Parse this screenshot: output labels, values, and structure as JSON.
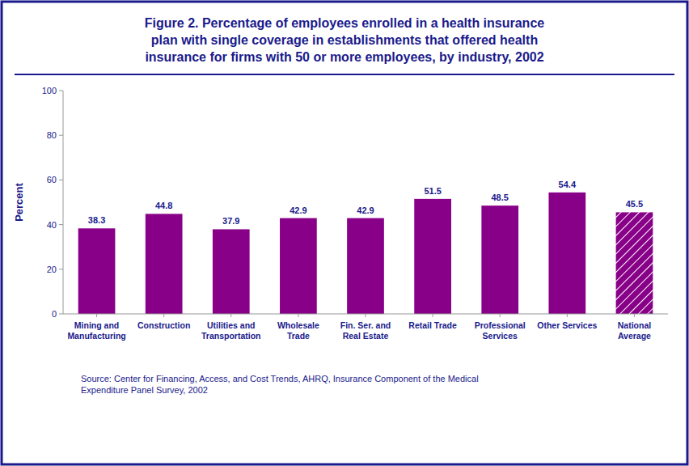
{
  "chart_data": {
    "type": "bar",
    "title": "Figure 2. Percentage of employees enrolled in a health insurance\nplan with single coverage in establishments that offered health\ninsurance for firms with 50 or more employees, by industry, 2002",
    "categories": [
      "Mining and\nManufacturing",
      "Construction",
      "Utilities and\nTransportation",
      "Wholesale\nTrade",
      "Fin. Ser. and\nReal Estate",
      "Retail Trade",
      "Professional\nServices",
      "Other Services",
      "National\nAverage"
    ],
    "values": [
      38.3,
      44.8,
      37.9,
      42.9,
      42.9,
      51.5,
      48.5,
      54.4,
      45.5
    ],
    "color": "#880088",
    "ylabel": "Percent",
    "ylim": [
      0,
      100
    ],
    "yticks": [
      0,
      20,
      40,
      60,
      80,
      100
    ],
    "data_labels": true,
    "grid": false,
    "annotations": [
      "Source: Center for Financing, Access, and Cost Trends, AHRQ, Insurance Component of the Medical\nExpenditure Panel Survey, 2002"
    ]
  }
}
